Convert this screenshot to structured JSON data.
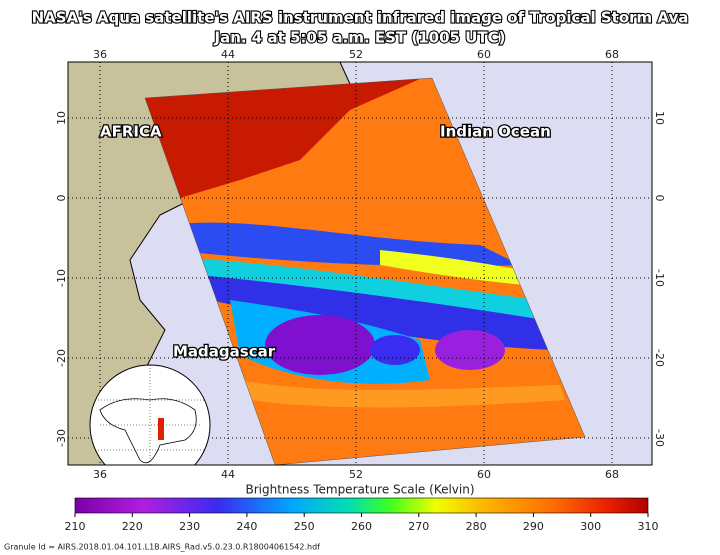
{
  "header": {
    "title": "NASA's Aqua satellite's AIRS instrument infrared image of Tropical Storm Ava",
    "subtitle": "Jan. 4 at 5:05 a.m. EST (1005 UTC)"
  },
  "map": {
    "labels": [
      "AFRICA",
      "Indian Ocean",
      "Madagascar"
    ],
    "lon_labels": [
      36,
      44,
      52,
      60,
      68
    ],
    "lat_labels": [
      10,
      0,
      -10,
      -20,
      -30
    ]
  },
  "colorbar": {
    "title": "Brightness Temperature Scale (Kelvin)",
    "ticks": [
      210,
      220,
      230,
      240,
      250,
      260,
      270,
      280,
      290,
      300,
      310
    ]
  },
  "footer": {
    "granule": "Granule Id = AIRS.2018.01.04.101.L1B.AIRS_Rad.v5.0.23.0.R18004061542.hdf"
  }
}
